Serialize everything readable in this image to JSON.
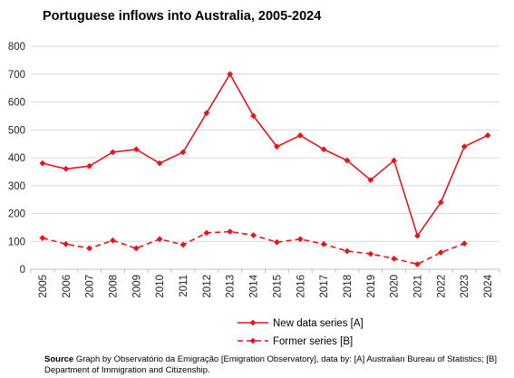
{
  "chart_data": {
    "type": "line",
    "title": "Portuguese inflows into Australia, 2005-2024",
    "xlabel": "",
    "ylabel": "",
    "ylim": [
      0,
      800
    ],
    "yticks": [
      "0",
      "100",
      "200",
      "300",
      "400",
      "500",
      "600",
      "700",
      "800"
    ],
    "categories": [
      "2005",
      "2006",
      "2007",
      "2008",
      "2009",
      "2010",
      "2011",
      "2012",
      "2013",
      "2014",
      "2015",
      "2016",
      "2017",
      "2018",
      "2019",
      "2020",
      "2021",
      "2022",
      "2023",
      "2024"
    ],
    "series": [
      {
        "name": "New data series [A]",
        "color": "#e8141c",
        "style": "solid",
        "marker": "diamond",
        "values": [
          380,
          360,
          370,
          420,
          430,
          380,
          420,
          560,
          700,
          550,
          440,
          480,
          430,
          390,
          320,
          390,
          120,
          240,
          440,
          480
        ]
      },
      {
        "name": "Former series [B]",
        "color": "#e8141c",
        "style": "dashed",
        "marker": "diamond",
        "values": [
          112,
          90,
          75,
          103,
          75,
          108,
          88,
          130,
          135,
          122,
          97,
          108,
          90,
          65,
          55,
          38,
          18,
          60,
          92,
          null
        ]
      }
    ],
    "grid": true,
    "legend_position": "bottom"
  },
  "source": {
    "label": "Source",
    "text": " Graph by Observatório da Emigração [Emigration Observatory], data by: [A]  Australian Bureau of Statistics; [B] Department of Immigration and Citizenship."
  }
}
